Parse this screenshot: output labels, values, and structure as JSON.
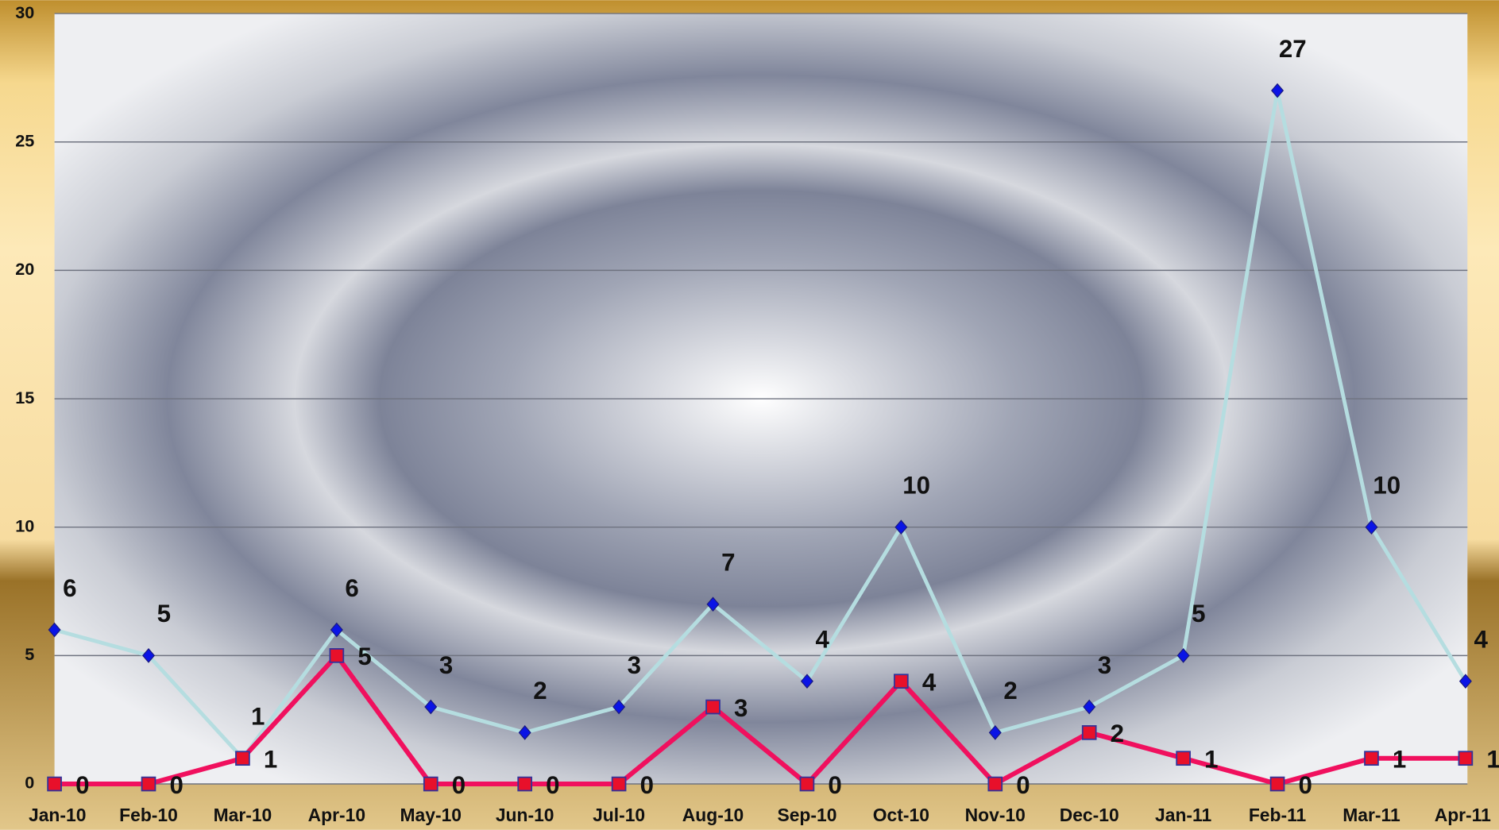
{
  "chart_data": {
    "type": "line",
    "categories": [
      "Jan-10",
      "Feb-10",
      "Mar-10",
      "Apr-10",
      "May-10",
      "Jun-10",
      "Jul-10",
      "Aug-10",
      "Sep-10",
      "Oct-10",
      "Nov-10",
      "Dec-10",
      "Jan-11",
      "Feb-11",
      "Mar-11",
      "Apr-11"
    ],
    "series": [
      {
        "color": "#b5dde0",
        "marker_color": "#0a14e6",
        "values": [
          6,
          5,
          1,
          6,
          3,
          2,
          3,
          7,
          4,
          10,
          2,
          3,
          5,
          27,
          10,
          4
        ]
      },
      {
        "color": "#f0105e",
        "marker_color": "#e8102a",
        "values": [
          0,
          0,
          1,
          5,
          0,
          0,
          0,
          3,
          0,
          4,
          0,
          2,
          1,
          0,
          1,
          1
        ]
      }
    ],
    "ylim": [
      0,
      30
    ],
    "yticks": [
      0,
      5,
      10,
      15,
      20,
      25,
      30
    ],
    "grid": true
  }
}
